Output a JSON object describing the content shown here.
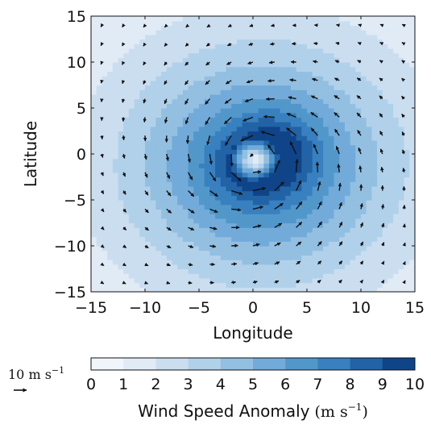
{
  "chart_data": {
    "type": "heatmap",
    "title": "",
    "xlabel": "Longitude",
    "ylabel": "Latitude",
    "xlim": [
      -15,
      15
    ],
    "ylim": [
      -15,
      15
    ],
    "xticks": [
      "−15",
      "−10",
      "−5",
      "0",
      "5",
      "10",
      "15"
    ],
    "yticks": [
      "15",
      "10",
      "5",
      "0",
      "−5",
      "−10",
      "−15"
    ],
    "xtick_values": [
      -15,
      -10,
      -5,
      0,
      5,
      10,
      15
    ],
    "ytick_values": [
      15,
      10,
      5,
      0,
      -5,
      -10,
      -15
    ],
    "colorbar": {
      "label_text": "Wind Speed Anomaly",
      "label_unit": "(m s",
      "label_unit_exp": "−1",
      "label_unit_close": ")",
      "min": 0,
      "max": 10,
      "ticks": [
        "0",
        "1",
        "2",
        "3",
        "4",
        "5",
        "6",
        "7",
        "8",
        "9",
        "10"
      ],
      "colors": [
        "#f0f5fb",
        "#e0ebf6",
        "#cbdef0",
        "#b1d1ea",
        "#93bfe1",
        "#72abd9",
        "#5297ca",
        "#3880bf",
        "#2263a6",
        "#0f4489"
      ]
    },
    "quiver_key": {
      "label": "10 m s",
      "label_exp": "−1",
      "value": 10,
      "units": "m s−1"
    },
    "field": {
      "center_lon": 0.3,
      "center_lat": -0.6,
      "max_anomaly": 9.6,
      "max_location": [
        2.5,
        1.0
      ],
      "eye_radius": 1.2,
      "radius_of_max_wind": 2.5,
      "outer_decay_scale": 9.5,
      "circulation": "counterclockwise"
    }
  }
}
